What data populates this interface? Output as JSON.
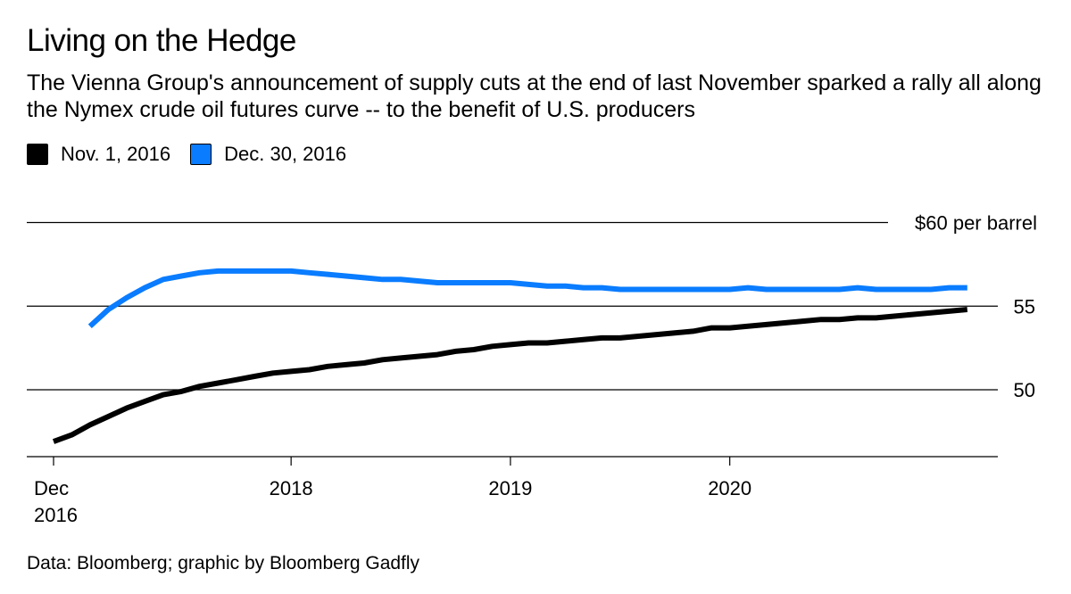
{
  "chart_data": {
    "type": "line",
    "title": "Living on the Hedge",
    "subtitle": "The Vienna Group's announcement of supply cuts at the end of last November sparked a rally all along the Nymex crude oil futures curve -- to the benefit of U.S. producers",
    "source": "Data: Bloomberg; graphic by Bloomberg Gadfly",
    "xlabel": "",
    "ylabel": "",
    "xlim": [
      2016.917,
      2021.1
    ],
    "ylim": [
      46,
      62
    ],
    "y_ticks": [
      {
        "value": 50,
        "label": "50"
      },
      {
        "value": 55,
        "label": "55"
      },
      {
        "value": 60,
        "label": "$60 per barrel"
      }
    ],
    "x_ticks": [
      {
        "value": 2016.917,
        "label": [
          "Dec",
          "2016"
        ]
      },
      {
        "value": 2018.0,
        "label": [
          "2018"
        ]
      },
      {
        "value": 2019.0,
        "label": [
          "2019"
        ]
      },
      {
        "value": 2020.0,
        "label": [
          "2020"
        ]
      }
    ],
    "series": [
      {
        "name": "Nov. 1, 2016",
        "color": "#000000",
        "x": [
          2016.917,
          2017.0,
          2017.083,
          2017.167,
          2017.25,
          2017.333,
          2017.417,
          2017.5,
          2017.583,
          2017.667,
          2017.75,
          2017.833,
          2017.917,
          2018.0,
          2018.083,
          2018.167,
          2018.25,
          2018.333,
          2018.417,
          2018.5,
          2018.583,
          2018.667,
          2018.75,
          2018.833,
          2018.917,
          2019.0,
          2019.083,
          2019.167,
          2019.25,
          2019.333,
          2019.417,
          2019.5,
          2019.583,
          2019.667,
          2019.75,
          2019.833,
          2019.917,
          2020.0,
          2020.083,
          2020.167,
          2020.25,
          2020.333,
          2020.417,
          2020.5,
          2020.583,
          2020.667,
          2020.75,
          2020.833,
          2020.917,
          2021.0,
          2021.083
        ],
        "values": [
          46.9,
          47.3,
          47.9,
          48.4,
          48.9,
          49.3,
          49.7,
          49.9,
          50.2,
          50.4,
          50.6,
          50.8,
          51.0,
          51.1,
          51.2,
          51.4,
          51.5,
          51.6,
          51.8,
          51.9,
          52.0,
          52.1,
          52.3,
          52.4,
          52.6,
          52.7,
          52.8,
          52.8,
          52.9,
          53.0,
          53.1,
          53.1,
          53.2,
          53.3,
          53.4,
          53.5,
          53.7,
          53.7,
          53.8,
          53.9,
          54.0,
          54.1,
          54.2,
          54.2,
          54.3,
          54.3,
          54.4,
          54.5,
          54.6,
          54.7,
          54.8
        ]
      },
      {
        "name": "Dec. 30, 2016",
        "color": "#0a7cff",
        "x": [
          2017.083,
          2017.167,
          2017.25,
          2017.333,
          2017.417,
          2017.5,
          2017.583,
          2017.667,
          2017.75,
          2017.833,
          2017.917,
          2018.0,
          2018.083,
          2018.167,
          2018.25,
          2018.333,
          2018.417,
          2018.5,
          2018.583,
          2018.667,
          2018.75,
          2018.833,
          2018.917,
          2019.0,
          2019.083,
          2019.167,
          2019.25,
          2019.333,
          2019.417,
          2019.5,
          2019.583,
          2019.667,
          2019.75,
          2019.833,
          2019.917,
          2020.0,
          2020.083,
          2020.167,
          2020.25,
          2020.333,
          2020.417,
          2020.5,
          2020.583,
          2020.667,
          2020.75,
          2020.833,
          2020.917,
          2021.0,
          2021.083
        ],
        "values": [
          53.8,
          54.8,
          55.5,
          56.1,
          56.6,
          56.8,
          57.0,
          57.1,
          57.1,
          57.1,
          57.1,
          57.1,
          57.0,
          56.9,
          56.8,
          56.7,
          56.6,
          56.6,
          56.5,
          56.4,
          56.4,
          56.4,
          56.4,
          56.4,
          56.3,
          56.2,
          56.2,
          56.1,
          56.1,
          56.0,
          56.0,
          56.0,
          56.0,
          56.0,
          56.0,
          56.0,
          56.1,
          56.0,
          56.0,
          56.0,
          56.0,
          56.0,
          56.1,
          56.0,
          56.0,
          56.0,
          56.0,
          56.1,
          56.1
        ]
      }
    ]
  }
}
